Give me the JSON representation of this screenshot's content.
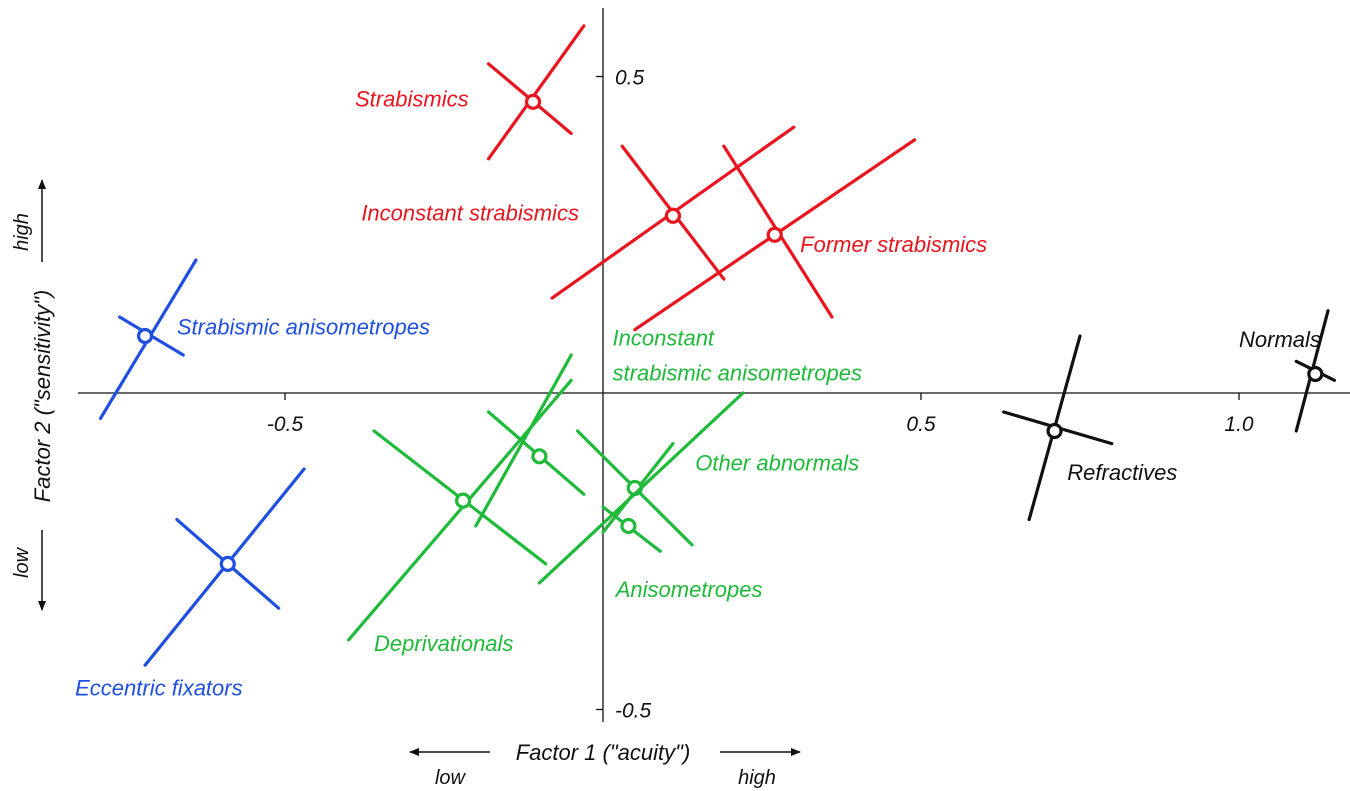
{
  "chart_data": {
    "type": "scatter",
    "title": "",
    "xlabel": "Factor 1 (\"acuity\")",
    "ylabel": "Factor 2 (\"sensitivity\")",
    "x_dir_low": "low",
    "x_dir_high": "high",
    "y_dir_low": "low",
    "y_dir_high": "high",
    "xlim": [
      -0.82,
      1.2
    ],
    "ylim": [
      -0.52,
      0.6
    ],
    "x_ticks": [
      {
        "value": -0.5,
        "label": "-0.5"
      },
      {
        "value": 0.5,
        "label": "0.5"
      },
      {
        "value": 1.0,
        "label": "1.0"
      }
    ],
    "y_ticks": [
      {
        "value": 0.5,
        "label": "0.5"
      },
      {
        "value": -0.5,
        "label": "-0.5"
      }
    ],
    "grid": false,
    "colors": {
      "blue": "#1f4fe0",
      "red": "#e8141e",
      "green": "#1fba3a",
      "black": "#111111"
    },
    "groups": [
      {
        "label": "Strabismics",
        "color": "red",
        "x": -0.11,
        "y": 0.46,
        "major": [
          [
            -0.03,
            0.58
          ],
          [
            -0.18,
            0.37
          ]
        ],
        "minor": [
          [
            -0.18,
            0.52
          ],
          [
            -0.05,
            0.41
          ]
        ]
      },
      {
        "label": "Inconstant strabismics",
        "color": "red",
        "x": 0.11,
        "y": 0.28,
        "major": [
          [
            0.3,
            0.42
          ],
          [
            -0.08,
            0.15
          ]
        ],
        "minor": [
          [
            0.03,
            0.39
          ],
          [
            0.19,
            0.18
          ]
        ]
      },
      {
        "label": "Former strabismics",
        "color": "red",
        "x": 0.27,
        "y": 0.25,
        "major": [
          [
            0.49,
            0.4
          ],
          [
            0.05,
            0.1
          ]
        ],
        "minor": [
          [
            0.19,
            0.39
          ],
          [
            0.36,
            0.12
          ]
        ]
      },
      {
        "label": "Strabismic anisometropes",
        "color": "blue",
        "x": -0.72,
        "y": 0.09,
        "major": [
          [
            -0.64,
            0.21
          ],
          [
            -0.79,
            -0.04
          ]
        ],
        "minor": [
          [
            -0.76,
            0.12
          ],
          [
            -0.66,
            0.06
          ]
        ]
      },
      {
        "label": "Eccentric fixators",
        "color": "blue",
        "x": -0.59,
        "y": -0.27,
        "major": [
          [
            -0.47,
            -0.12
          ],
          [
            -0.72,
            -0.43
          ]
        ],
        "minor": [
          [
            -0.67,
            -0.2
          ],
          [
            -0.51,
            -0.34
          ]
        ]
      },
      {
        "label": "Inconstant strabismic anisometropes",
        "color": "green",
        "x": -0.1,
        "y": -0.1,
        "major": [
          [
            -0.05,
            0.06
          ],
          [
            -0.2,
            -0.21
          ]
        ],
        "minor": [
          [
            -0.18,
            -0.03
          ],
          [
            -0.03,
            -0.16
          ]
        ]
      },
      {
        "label": "Other abnormals",
        "color": "green",
        "x": 0.05,
        "y": -0.15,
        "major": [
          [
            0.11,
            -0.08
          ],
          [
            -0.0,
            -0.22
          ]
        ],
        "minor": [
          [
            -0.04,
            -0.06
          ],
          [
            0.14,
            -0.24
          ]
        ]
      },
      {
        "label": "Anisometropes",
        "color": "green",
        "x": 0.04,
        "y": -0.21,
        "major": [
          [
            0.22,
            0.0
          ],
          [
            -0.1,
            -0.3
          ]
        ],
        "minor": [
          [
            -0.0,
            -0.18
          ],
          [
            0.09,
            -0.25
          ]
        ]
      },
      {
        "label": "Deprivationals",
        "color": "green",
        "x": -0.22,
        "y": -0.17,
        "major": [
          [
            -0.05,
            0.02
          ],
          [
            -0.4,
            -0.39
          ]
        ],
        "minor": [
          [
            -0.36,
            -0.06
          ],
          [
            -0.09,
            -0.27
          ]
        ]
      },
      {
        "label": "Refractives",
        "color": "black",
        "x": 0.71,
        "y": -0.06,
        "major": [
          [
            0.75,
            0.09
          ],
          [
            0.67,
            -0.2
          ]
        ],
        "minor": [
          [
            0.63,
            -0.03
          ],
          [
            0.8,
            -0.08
          ]
        ]
      },
      {
        "label": "Normals",
        "color": "black",
        "x": 1.12,
        "y": 0.03,
        "major": [
          [
            1.14,
            0.13
          ],
          [
            1.09,
            -0.06
          ]
        ],
        "minor": [
          [
            1.09,
            0.05
          ],
          [
            1.15,
            0.02
          ]
        ]
      }
    ]
  }
}
